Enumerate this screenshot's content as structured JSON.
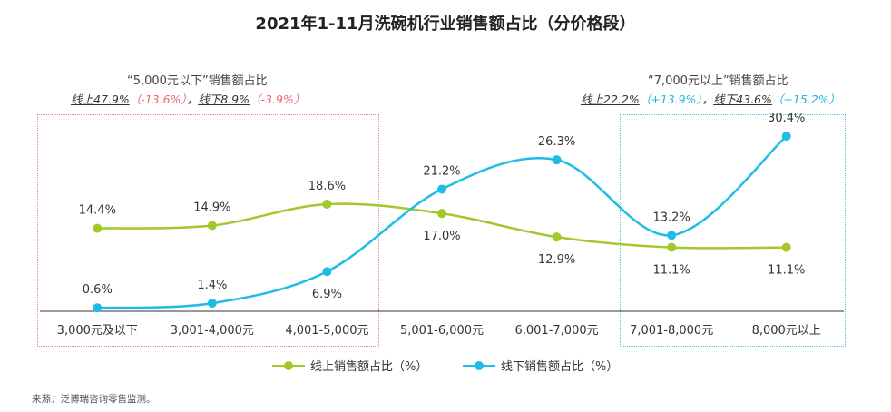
{
  "title": "2021年1-11月洗碗机行业销售额占比（分价格段）",
  "annotations": {
    "left": {
      "heading": "“5,000元以下”销售额占比",
      "online_text": "线上47.9%",
      "online_change": "（-13.6%）",
      "sep": "，",
      "offline_text": "线下8.9%",
      "offline_change": "（-3.9%）"
    },
    "right": {
      "heading": "“7,000元以上”销售额占比",
      "online_text": "线上22.2%",
      "online_change": "（+13.9%）",
      "sep": "，",
      "offline_text": "线下43.6%",
      "offline_change": "（+15.2%）"
    }
  },
  "source": "来源：泛博瑞咨询零售监测。",
  "colors": {
    "online": "#a3c82a",
    "offline": "#1fbde6",
    "axis": "#333333",
    "left_box": "#e8868c",
    "right_box": "#55c5e3"
  },
  "chart_data": {
    "type": "line",
    "title": "2021年1-11月洗碗机行业销售额占比（分价格段）",
    "categories": [
      "3,000元及以下",
      "3,001-4,000元",
      "4,001-5,000元",
      "5,001-6,000元",
      "6,001-7,000元",
      "7,001-8,000元",
      "8,000元以上"
    ],
    "series": [
      {
        "name": "线上销售额占比（%）",
        "values": [
          14.4,
          14.9,
          18.6,
          17.0,
          12.9,
          11.1,
          11.1
        ],
        "labels": [
          "14.4%",
          "14.9%",
          "18.6%",
          "17.0%",
          "12.9%",
          "11.1%",
          "11.1%"
        ]
      },
      {
        "name": "线下销售额占比（%）",
        "values": [
          0.6,
          1.4,
          6.9,
          21.2,
          26.3,
          13.2,
          30.4
        ],
        "labels": [
          "0.6%",
          "1.4%",
          "6.9%",
          "21.2%",
          "26.3%",
          "13.2%",
          "30.4%"
        ]
      }
    ],
    "ylim": [
      0,
      32
    ],
    "grid": false,
    "legend": "bottom",
    "smooth": true
  }
}
